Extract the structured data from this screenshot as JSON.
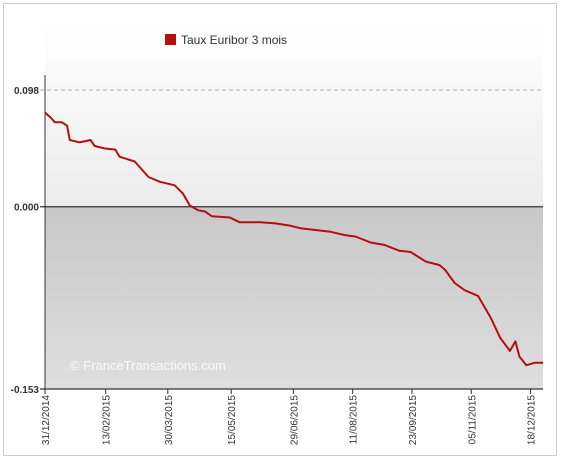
{
  "chart_data": {
    "type": "line",
    "series": [
      {
        "name": "Taux Euribor 3 mois",
        "color": "#b50f0f",
        "x": [
          "31/12/2014",
          "04/01/2015",
          "07/01/2015",
          "12/01/2015",
          "16/01/2015",
          "18/01/2015",
          "25/01/2015",
          "02/02/2015",
          "05/02/2015",
          "12/02/2015",
          "20/02/2015",
          "23/02/2015",
          "06/03/2015",
          "16/03/2015",
          "24/03/2015",
          "04/04/2015",
          "10/04/2015",
          "15/04/2015",
          "21/04/2015",
          "26/04/2015",
          "01/05/2015",
          "14/05/2015",
          "21/05/2015",
          "05/06/2015",
          "16/06/2015",
          "27/06/2015",
          "04/07/2015",
          "26/07/2015",
          "06/08/2015",
          "13/08/2015",
          "24/08/2015",
          "03/09/2015",
          "14/09/2015",
          "22/09/2015",
          "03/10/2015",
          "13/10/2015",
          "17/10/2015",
          "24/10/2015",
          "31/10/2015",
          "10/11/2015",
          "19/11/2015",
          "26/11/2015",
          "03/12/2015",
          "07/12/2015",
          "10/12/2015",
          "15/12/2015",
          "21/12/2015",
          "27/12/2015"
        ],
        "values": [
          0.079,
          0.075,
          0.071,
          0.071,
          0.068,
          0.056,
          0.054,
          0.056,
          0.051,
          0.049,
          0.048,
          0.042,
          0.038,
          0.025,
          0.021,
          0.018,
          0.011,
          0.001,
          -0.003,
          -0.004,
          -0.008,
          -0.009,
          -0.013,
          -0.013,
          -0.014,
          -0.016,
          -0.018,
          -0.021,
          -0.024,
          -0.025,
          -0.03,
          -0.032,
          -0.037,
          -0.038,
          -0.046,
          -0.049,
          -0.053,
          -0.064,
          -0.07,
          -0.075,
          -0.093,
          -0.11,
          -0.121,
          -0.113,
          -0.126,
          -0.133,
          -0.131,
          -0.131
        ]
      }
    ],
    "ylim": [
      -0.153,
      0.098
    ],
    "yticks": [
      -0.153,
      {
        "value": 0,
        "label": "0.000"
      },
      0.098
    ],
    "xticks": [
      "31/12/2014",
      "13/02/2015",
      "30/03/2015",
      "15/05/2015",
      "29/06/2015",
      "11/08/2015",
      "23/09/2015",
      "05/11/2015",
      "18/12/2015"
    ],
    "watermark": "© FranceTransactions.com"
  }
}
